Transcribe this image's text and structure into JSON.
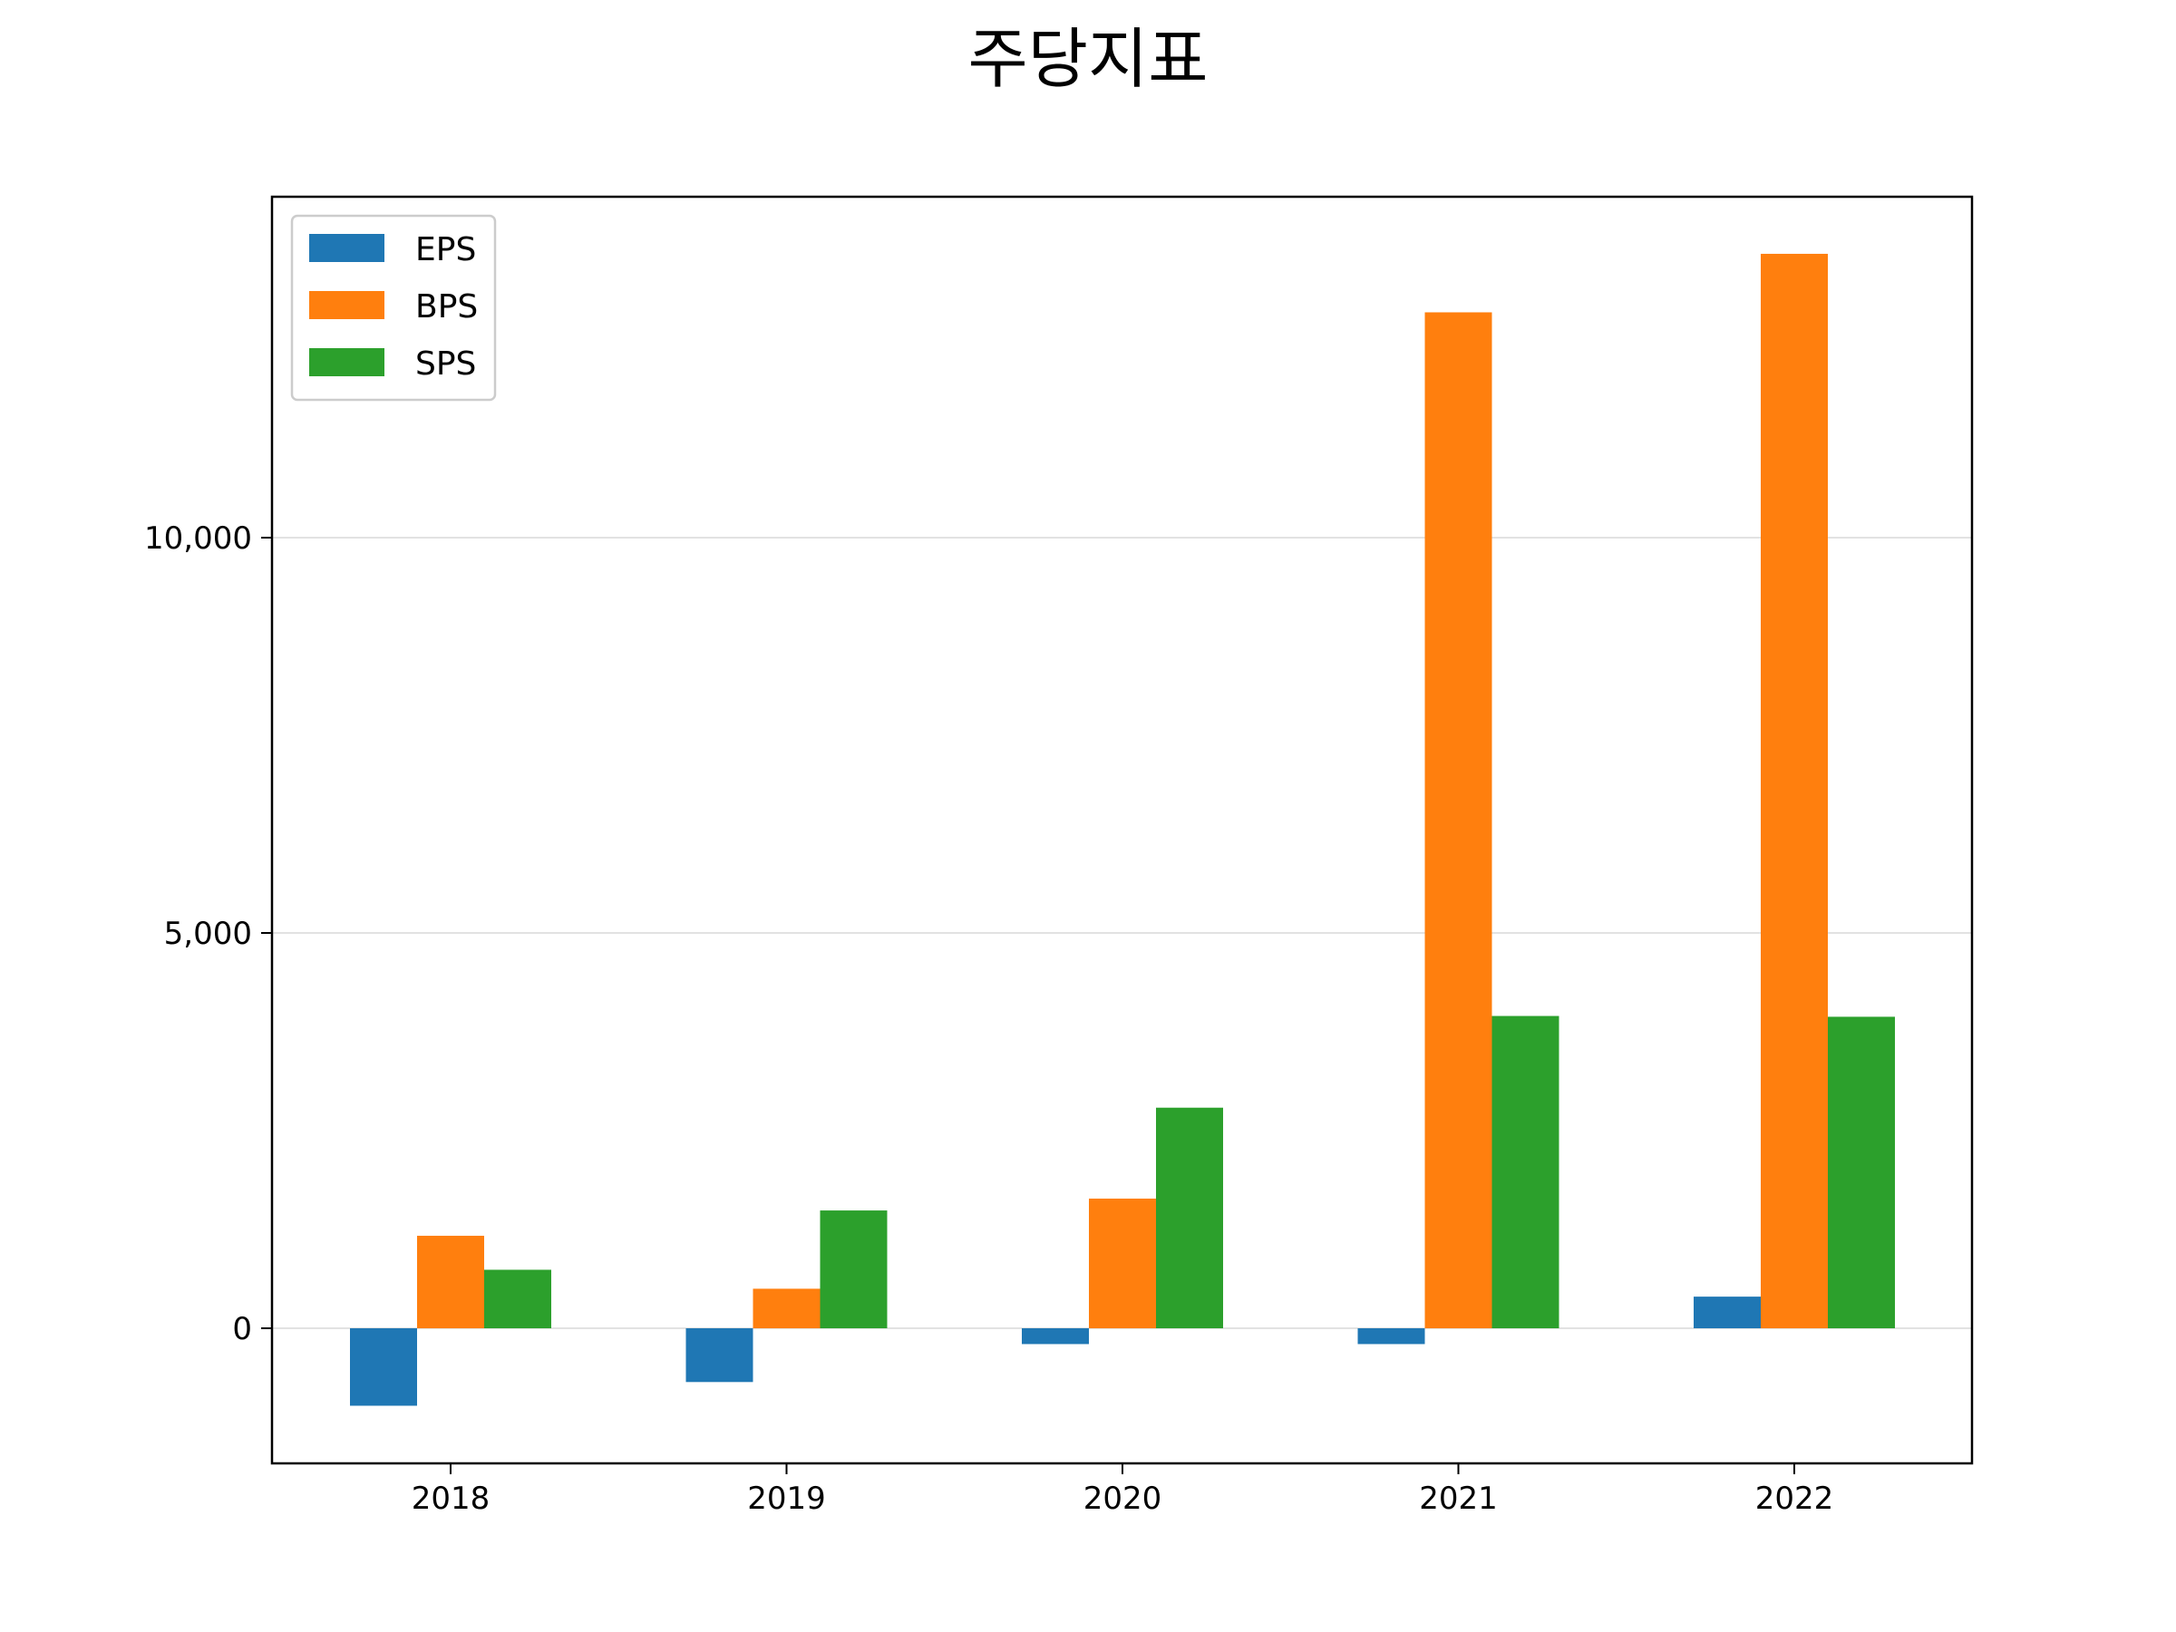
{
  "chart_data": {
    "type": "bar",
    "title": "주당지표",
    "xlabel": "",
    "ylabel": "",
    "categories": [
      "2018",
      "2019",
      "2020",
      "2021",
      "2022"
    ],
    "series": [
      {
        "name": "EPS",
        "color": "#1f77b4",
        "values": [
          -980,
          -680,
          -200,
          -200,
          400
        ]
      },
      {
        "name": "BPS",
        "color": "#ff7f0e",
        "values": [
          1170,
          500,
          1640,
          12850,
          13590
        ]
      },
      {
        "name": "SPS",
        "color": "#2ca02c",
        "values": [
          740,
          1490,
          2790,
          3950,
          3940
        ]
      }
    ],
    "ylim": [
      -1700,
      14300
    ],
    "yticks": [
      {
        "value": 0,
        "label": "0"
      },
      {
        "value": 5000,
        "label": "5,000"
      },
      {
        "value": 10000,
        "label": "10,000"
      }
    ],
    "grid": {
      "y": true,
      "x": false
    },
    "legend": {
      "position": "top-left",
      "entries": [
        "EPS",
        "BPS",
        "SPS"
      ]
    }
  }
}
